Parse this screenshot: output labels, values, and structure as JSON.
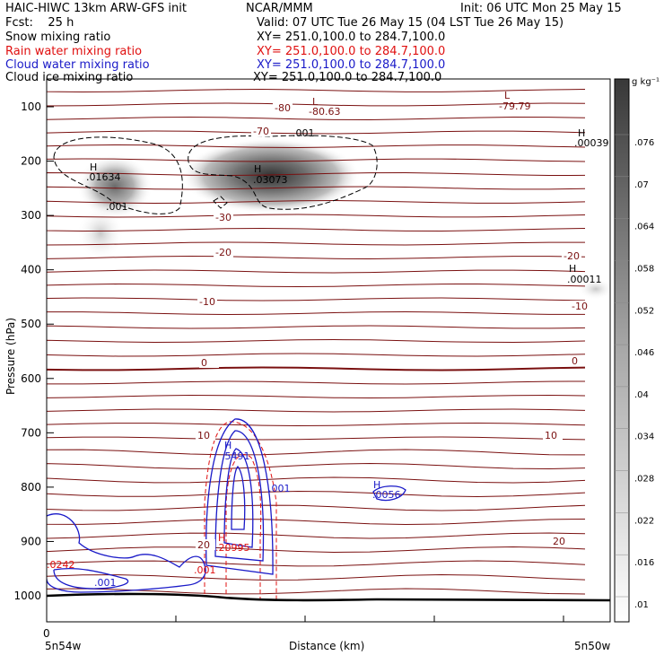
{
  "header": {
    "title_left": "HAIC-HIWC 13km ARW-GFS init",
    "title_mid": "NCAR/MMM",
    "init": "Init: 06 UTC Mon 25 May 15",
    "fcst": "Fcst:    25 h",
    "valid": "Valid: 07 UTC Tue 26 May 15 (04 LST Tue 26 May 15)",
    "fields": [
      {
        "name": "Snow mixing ratio",
        "xy": "XY= 251.0,100.0 to 284.7,100.0",
        "color": "#000000"
      },
      {
        "name": "Rain water mixing ratio",
        "xy": "XY= 251.0,100.0 to 284.7,100.0",
        "color": "#e01010"
      },
      {
        "name": "Cloud water mixing ratio",
        "xy": "XY= 251.0,100.0 to 284.7,100.0",
        "color": "#1a1ac8"
      },
      {
        "name": "Cloud ice mixing ratio",
        "xy": "XY= 251.0,100.0 to 284.7,100.0",
        "color": "#000000"
      }
    ]
  },
  "chart_data": {
    "type": "cross-section",
    "ylabel": "Pressure (hPa)",
    "xlabel": "Distance (km)",
    "x_start_label": "5n54w",
    "x_end_label": "5n50w",
    "x_tick_zero": "0",
    "yticks": [
      100,
      200,
      300,
      400,
      500,
      600,
      700,
      800,
      900,
      1000
    ],
    "ylim": [
      1050,
      60
    ],
    "colorbar": {
      "unit": "g kg⁻¹",
      "levels": [
        ".01",
        ".016",
        ".022",
        ".028",
        ".034",
        ".04",
        ".046",
        ".052",
        ".058",
        ".064",
        ".07",
        ".076"
      ]
    },
    "temperature_labels": [
      "-80",
      "-70",
      "-30",
      "-20",
      "-10",
      "0",
      "10",
      "20",
      "-20",
      "-10",
      "0",
      "10",
      "20"
    ],
    "extrema": [
      {
        "type": "L",
        "value": "-80.63"
      },
      {
        "type": "L",
        "value": "-79.79"
      },
      {
        "type": "H",
        "value": ".00039"
      },
      {
        "type": "H",
        "value": ".01634"
      },
      {
        "type": "H",
        "value": ".03073"
      },
      {
        "type": "H",
        "value": ".00011"
      },
      {
        "type": "H",
        "value": ".5491"
      },
      {
        "type": "H",
        "value": ".0056"
      },
      {
        "type": "H",
        "value": ".20995"
      }
    ],
    "contour_labels": [
      ".001",
      ".001",
      ".001",
      ".001",
      ".001",
      ".0242"
    ],
    "colors": {
      "temperature": "#7a1010",
      "rain": "#e01010",
      "cloud_water": "#1a1ac8",
      "ice": "#000000"
    }
  }
}
